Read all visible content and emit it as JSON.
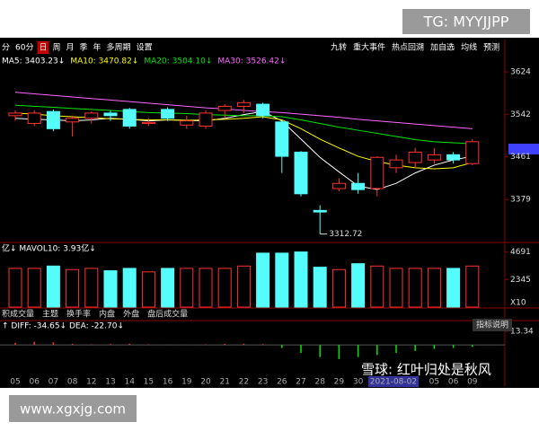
{
  "header": {
    "tag": "TG: MYYJJPP"
  },
  "toolbar": {
    "left": [
      "分",
      "60分",
      "日",
      "周",
      "月",
      "季",
      "年",
      "多周期",
      "设置"
    ],
    "right": [
      "九转",
      "重大事件",
      "热点回溯",
      "加自选",
      "均线",
      "预测"
    ]
  },
  "chart_data": [
    {
      "type": "candlestick",
      "categories": [
        "05",
        "06",
        "07",
        "08",
        "12",
        "13",
        "14",
        "15",
        "16",
        "19",
        "20",
        "21",
        "22",
        "23",
        "26",
        "27",
        "28",
        "29",
        "30",
        "2021-08-02",
        null,
        null,
        "05",
        "06",
        "09"
      ],
      "open": [
        3540,
        3525,
        3548,
        3528,
        3535,
        3545,
        3552,
        3525,
        3552,
        3522,
        3520,
        3550,
        3558,
        3562,
        3528,
        3470,
        3358,
        3400,
        3410,
        3400,
        3440,
        3450,
        3455,
        3465,
        3448
      ],
      "close": [
        3545,
        3545,
        3515,
        3535,
        3545,
        3540,
        3520,
        3527,
        3535,
        3530,
        3545,
        3558,
        3565,
        3540,
        3462,
        3390,
        3355,
        3410,
        3398,
        3460,
        3455,
        3470,
        3465,
        3455,
        3490
      ],
      "high": [
        3550,
        3550,
        3552,
        3540,
        3548,
        3550,
        3555,
        3535,
        3556,
        3540,
        3550,
        3562,
        3570,
        3565,
        3532,
        3472,
        3368,
        3420,
        3430,
        3462,
        3465,
        3478,
        3478,
        3470,
        3495
      ],
      "low": [
        3530,
        3520,
        3510,
        3500,
        3525,
        3530,
        3515,
        3520,
        3530,
        3515,
        3515,
        3535,
        3545,
        3535,
        3430,
        3385,
        3312.72,
        3395,
        3390,
        3385,
        3430,
        3440,
        3448,
        3448,
        3445
      ],
      "up_color": "#ff3232",
      "down_color": "#54fcfc",
      "series": [
        {
          "name": "MA5: 3403.23↓",
          "color": "#ffffff",
          "values": [
            3535,
            3533,
            3532,
            3530,
            3532,
            3535,
            3533,
            3530,
            3532,
            3531,
            3530,
            3535,
            3542,
            3548,
            3530,
            3495,
            3460,
            3432,
            3405,
            3398,
            3410,
            3430,
            3445,
            3455,
            3462
          ]
        },
        {
          "name": "MA10: 3470.82↓",
          "color": "#ffff00",
          "values": [
            3545,
            3543,
            3540,
            3538,
            3536,
            3534,
            3533,
            3532,
            3532,
            3531,
            3532,
            3533,
            3535,
            3538,
            3532,
            3515,
            3495,
            3478,
            3462,
            3452,
            3445,
            3440,
            3438,
            3440,
            3450
          ]
        },
        {
          "name": "MA20: 3504.10↓",
          "color": "#00e600",
          "values": [
            3560,
            3558,
            3556,
            3554,
            3552,
            3550,
            3548,
            3546,
            3545,
            3544,
            3542,
            3541,
            3540,
            3540,
            3538,
            3532,
            3525,
            3518,
            3512,
            3506,
            3500,
            3494,
            3490,
            3488,
            3486
          ]
        },
        {
          "name": "MA30: 3526.42↓",
          "color": "#ff66ff",
          "values": [
            3585,
            3582,
            3579,
            3576,
            3573,
            3570,
            3567,
            3564,
            3561,
            3558,
            3555,
            3553,
            3550,
            3548,
            3546,
            3543,
            3540,
            3537,
            3533,
            3530,
            3527,
            3524,
            3521,
            3518,
            3515
          ]
        }
      ],
      "ylim": [
        3300,
        3638
      ],
      "yticks": [
        3624,
        3542,
        3461,
        3379
      ]
    },
    {
      "type": "volume",
      "title": "亿↓ MAVOL10: 3.93亿↓",
      "unit": "X10",
      "values": [
        3300,
        3300,
        3500,
        3200,
        3300,
        3100,
        3300,
        3000,
        3300,
        3300,
        3300,
        3300,
        3500,
        4600,
        4600,
        4700,
        3400,
        3200,
        3700,
        3500,
        3300,
        3300,
        3300,
        3300,
        3500
      ],
      "ylim": [
        0,
        4900
      ],
      "yticks": [
        2345,
        4691
      ]
    },
    {
      "type": "macd",
      "title": "↑ DIFF: -34.65↓ DEA: -22.70↓",
      "button": "指标说明",
      "values": [
        2,
        3,
        2.5,
        1,
        0.5,
        0.8,
        1,
        0.5,
        0.3,
        0.2,
        0.5,
        1,
        1.2,
        0.8,
        -3,
        -8,
        -12,
        -14,
        -12,
        -10,
        -8,
        -6,
        -4,
        -3,
        -2
      ],
      "up_color": "#ff3232",
      "down_color": "#00e600",
      "ylim": [
        -30,
        16
      ],
      "yticks": [
        13.34
      ]
    }
  ],
  "tabs": [
    "积成交量",
    "主题",
    "换手率",
    "内盘",
    "外盘",
    "盘后成交量"
  ],
  "watermark": "雪球: 红叶归处是秋风",
  "footer": "www.xgxjg.com"
}
